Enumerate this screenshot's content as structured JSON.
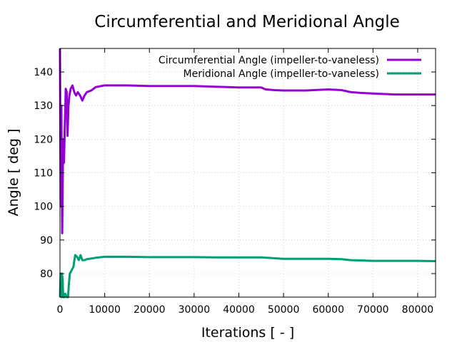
{
  "chart_data": {
    "type": "line",
    "title": "Circumferential and Meridional Angle",
    "xlabel": "Iterations [ - ]",
    "ylabel": "Angle [ deg ]",
    "xlim": [
      0,
      84000
    ],
    "ylim": [
      73,
      147
    ],
    "xticks": [
      0,
      10000,
      20000,
      30000,
      40000,
      50000,
      60000,
      70000,
      80000
    ],
    "yticks": [
      80,
      90,
      100,
      110,
      120,
      130,
      140
    ],
    "grid": true,
    "legend_position": "top-right",
    "series": [
      {
        "name": "Circumferential Angle (impeller-to-vaneless)",
        "color": "#9400d3",
        "x": [
          0,
          150,
          300,
          500,
          700,
          900,
          1100,
          1300,
          1500,
          1700,
          1900,
          2100,
          2400,
          2800,
          3200,
          3600,
          4000,
          4500,
          5000,
          5500,
          6000,
          7000,
          8000,
          10000,
          12000,
          15000,
          20000,
          25000,
          30000,
          35000,
          40000,
          45000,
          46000,
          48000,
          50000,
          55000,
          60000,
          63000,
          65000,
          67000,
          70000,
          75000,
          80000,
          84000
        ],
        "y": [
          147,
          100,
          130,
          92,
          120,
          113,
          125,
          135,
          134,
          121,
          130,
          133,
          135,
          136,
          134,
          133,
          134,
          133,
          131.5,
          133,
          134,
          134.5,
          135.5,
          136,
          136,
          136,
          135.8,
          135.8,
          135.8,
          135.6,
          135.4,
          135.4,
          134.8,
          134.6,
          134.5,
          134.5,
          134.8,
          134.6,
          134,
          133.8,
          133.6,
          133.3,
          133.3,
          133.3
        ]
      },
      {
        "name": "Meridional Angle (impeller-to-vaneless)",
        "color": "#009e73",
        "x": [
          0,
          150,
          300,
          450,
          600,
          700,
          800,
          1000,
          1200,
          1500,
          1800,
          2000,
          2200,
          2600,
          3000,
          3400,
          3800,
          4200,
          4600,
          5000,
          5500,
          6000,
          7000,
          8000,
          10000,
          15000,
          20000,
          25000,
          30000,
          35000,
          40000,
          45000,
          50000,
          55000,
          60000,
          63000,
          65000,
          70000,
          75000,
          80000,
          84000
        ],
        "y": [
          73,
          80,
          73,
          80,
          78,
          73,
          74,
          73,
          74,
          73,
          73,
          77,
          80,
          81,
          82,
          85.5,
          85,
          84,
          85.5,
          84,
          84,
          84.3,
          84.5,
          84.7,
          85,
          85,
          84.9,
          84.9,
          84.9,
          84.8,
          84.8,
          84.8,
          84.4,
          84.4,
          84.4,
          84.3,
          84,
          83.8,
          83.8,
          83.8,
          83.7
        ]
      }
    ]
  }
}
